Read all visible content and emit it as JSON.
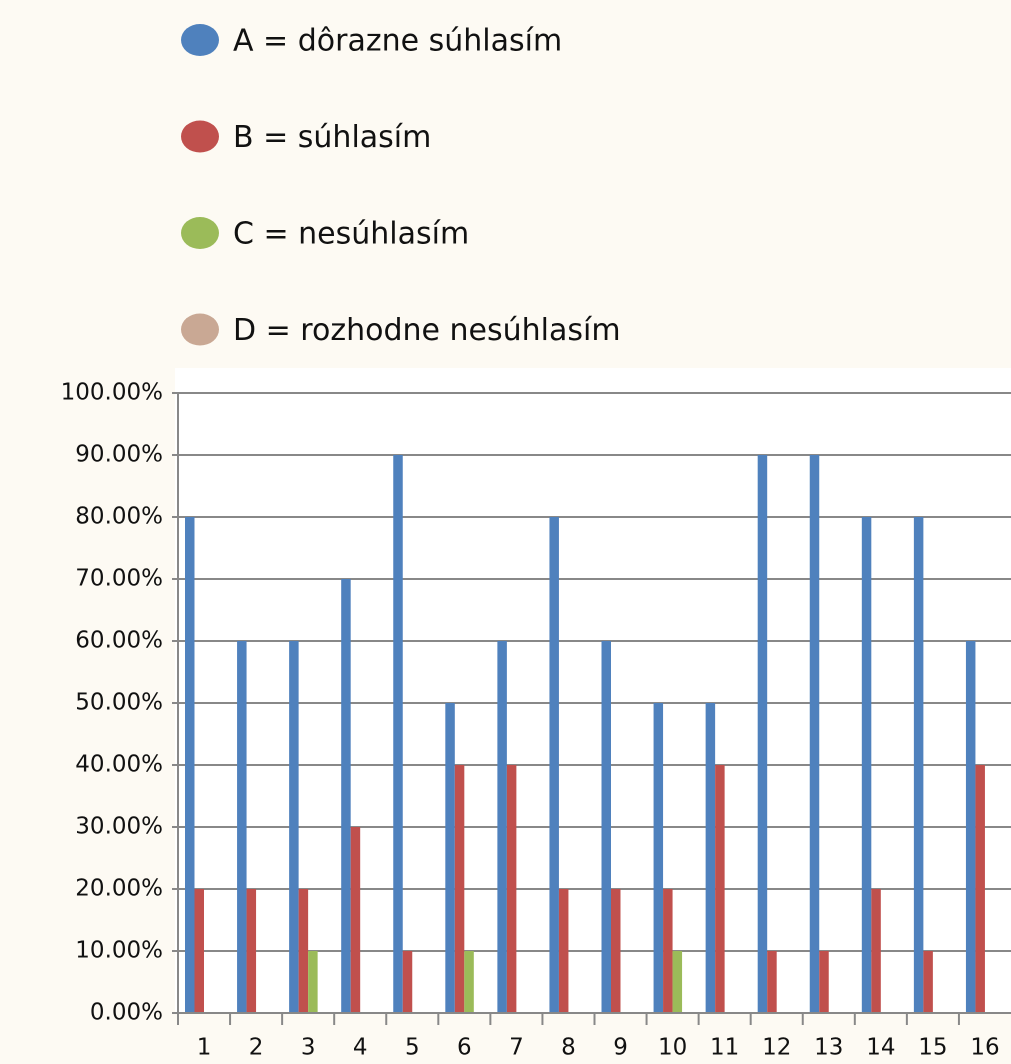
{
  "chart_data": {
    "type": "bar",
    "categories": [
      "1",
      "2",
      "3",
      "4",
      "5",
      "6",
      "7",
      "8",
      "9",
      "10",
      "11",
      "12",
      "13",
      "14",
      "15",
      "16"
    ],
    "series": [
      {
        "name": "A = dôrazne súhlasím",
        "color": "#4f81bd",
        "values": [
          80,
          60,
          60,
          70,
          90,
          50,
          60,
          80,
          60,
          50,
          50,
          90,
          90,
          80,
          80,
          60
        ]
      },
      {
        "name": "B = súhlasím",
        "color": "#c0504d",
        "values": [
          20,
          20,
          20,
          30,
          10,
          40,
          40,
          20,
          20,
          20,
          40,
          10,
          10,
          20,
          10,
          40
        ]
      },
      {
        "name": "C = nesúhlasím",
        "color": "#9bbb59",
        "values": [
          0,
          0,
          10,
          0,
          0,
          10,
          0,
          0,
          0,
          10,
          0,
          0,
          0,
          0,
          0,
          0
        ]
      },
      {
        "name": "D = rozhodne nesúhlasím",
        "color": "#c9a894",
        "values": [
          0,
          0,
          0,
          0,
          0,
          0,
          0,
          0,
          0,
          0,
          0,
          0,
          0,
          0,
          0,
          0
        ]
      }
    ],
    "ylim": [
      0,
      100
    ],
    "yticks": [
      {
        "value": 0,
        "label": "0.00%"
      },
      {
        "value": 10,
        "label": "10.00%"
      },
      {
        "value": 20,
        "label": "20.00%"
      },
      {
        "value": 30,
        "label": "30.00%"
      },
      {
        "value": 40,
        "label": "40.00%"
      },
      {
        "value": 50,
        "label": "50.00%"
      },
      {
        "value": 60,
        "label": "60.00%"
      },
      {
        "value": 70,
        "label": "70.00%"
      },
      {
        "value": 80,
        "label": "80.00%"
      },
      {
        "value": 90,
        "label": "90.00%"
      },
      {
        "value": 100,
        "label": "100.00%"
      }
    ],
    "grid": true,
    "legend": "top"
  }
}
